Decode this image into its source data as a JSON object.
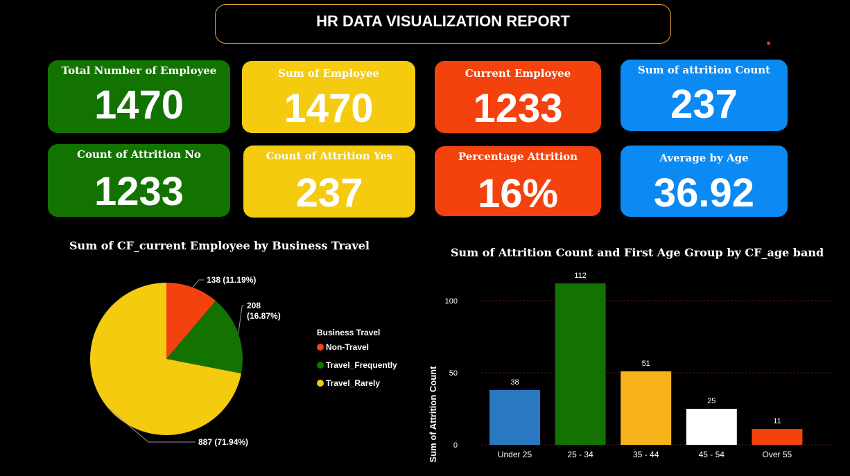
{
  "header": {
    "title": "HR DATA VISUALIZATION REPORT"
  },
  "colors": {
    "green": "#137300",
    "yellow": "#f4cb0f",
    "orange": "#f3420d",
    "blue": "#0a8af2"
  },
  "kpis": [
    {
      "label": "Total Number of Employee",
      "value": "1470"
    },
    {
      "label": "Sum of Employee",
      "value": "1470"
    },
    {
      "label": "Current Employee",
      "value": "1233"
    },
    {
      "label": "Sum of attrition Count",
      "value": "237"
    },
    {
      "label": "Count of Attrition No",
      "value": "1233"
    },
    {
      "label": "Count of Attrition Yes",
      "value": "237"
    },
    {
      "label": "Percentage Attrition",
      "value": "16%"
    },
    {
      "label": "Average by Age",
      "value": "36.92"
    }
  ],
  "chart_data": [
    {
      "type": "pie",
      "title": "Sum of CF_current Employee by Business Travel",
      "legend_title": "Business Travel",
      "legend_position": "right",
      "slices": [
        {
          "name": "Non-Travel",
          "value": 138,
          "label": "138 (11.19%)",
          "color": "#f3420d"
        },
        {
          "name": "Travel_Frequently",
          "value": 208,
          "label": "208 (16.87%)",
          "color": "#137300"
        },
        {
          "name": "Travel_Rarely",
          "value": 887,
          "label": "887 (71.94%)",
          "color": "#f4cb0f"
        }
      ]
    },
    {
      "type": "bar",
      "title": "Sum of Attrition Count and First Age Group by CF_age band",
      "xlabel": "",
      "ylabel": "Sum of Attrition Count",
      "ylim": [
        0,
        112
      ],
      "yticks": [
        0,
        50,
        100
      ],
      "grid": true,
      "categories": [
        "Under 25",
        "25 - 34",
        "35 - 44",
        "45 - 54",
        "Over 55"
      ],
      "values": [
        38,
        112,
        51,
        25,
        11
      ],
      "colors": [
        "#2a77c2",
        "#137300",
        "#f9b31a",
        "#ffffff",
        "#f3420d"
      ]
    }
  ]
}
